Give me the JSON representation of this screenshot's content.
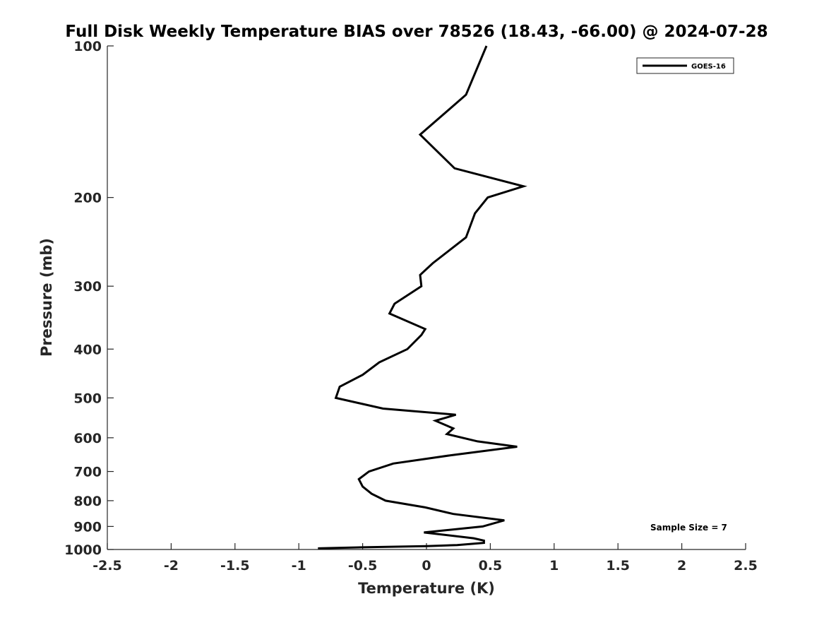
{
  "chart_data": {
    "type": "line",
    "title": "Full Disk Weekly Temperature BIAS over 78526 (18.43, -66.00) @ 2024-07-28",
    "xlabel": "Temperature (K)",
    "ylabel": "Pressure (mb)",
    "xlim": [
      -2.5,
      2.5
    ],
    "ylim": [
      100,
      1000
    ],
    "y_scale": "log",
    "y_reversed": true,
    "x_ticks": [
      "-2.5",
      "-2",
      "-1.5",
      "-1",
      "-0.5",
      "0",
      "0.5",
      "1",
      "1.5",
      "2",
      "2.5"
    ],
    "y_ticks": [
      "100",
      "200",
      "300",
      "400",
      "500",
      "600",
      "700",
      "800",
      "900",
      "1000"
    ],
    "grid": false,
    "legend_position": "top-right",
    "series": [
      {
        "name": "GOES-16",
        "color": "#000000",
        "x": [
          0.47,
          0.31,
          -0.05,
          0.22,
          0.76,
          0.48,
          0.38,
          0.31,
          0.05,
          -0.05,
          -0.04,
          -0.25,
          -0.29,
          -0.01,
          -0.04,
          -0.15,
          -0.37,
          -0.5,
          -0.68,
          -0.71,
          -0.34,
          0.23,
          0.07,
          0.21,
          0.16,
          0.4,
          0.71,
          0.19,
          -0.26,
          -0.45,
          -0.53,
          -0.5,
          -0.43,
          -0.32,
          -0.01,
          0.21,
          0.61,
          0.44,
          -0.02,
          0.37,
          0.45,
          0.45,
          0.24,
          0.0,
          -0.5,
          -0.85
        ],
        "y": [
          100,
          125,
          150,
          175,
          190,
          200,
          215,
          240,
          270,
          285,
          300,
          325,
          340,
          365,
          375,
          400,
          425,
          450,
          475,
          500,
          525,
          540,
          555,
          575,
          590,
          610,
          625,
          650,
          675,
          700,
          725,
          750,
          775,
          800,
          825,
          850,
          875,
          900,
          925,
          950,
          960,
          970,
          980,
          985,
          990,
          995
        ]
      }
    ],
    "annotations": [
      "Sample Size = 7"
    ]
  }
}
